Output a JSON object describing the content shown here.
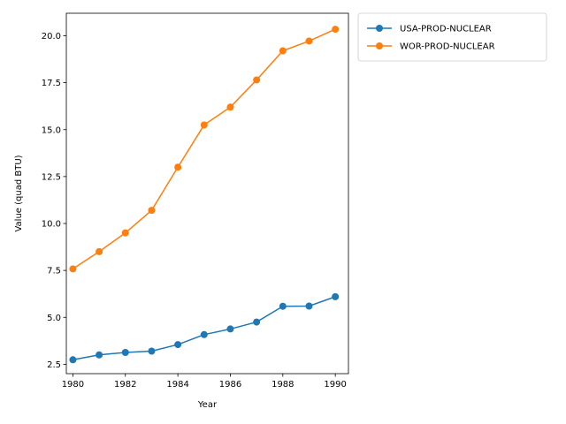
{
  "chart_data": {
    "type": "line",
    "title": "",
    "xlabel": "Year",
    "ylabel": "Value (quad BTU)",
    "x": [
      1980,
      1981,
      1982,
      1983,
      1984,
      1985,
      1986,
      1987,
      1988,
      1989,
      1990
    ],
    "xlim": [
      1979.75,
      1990.5
    ],
    "ylim": [
      2.0,
      21.2
    ],
    "x_ticks": [
      1980,
      1982,
      1984,
      1986,
      1988,
      1990
    ],
    "y_ticks": [
      2.5,
      5.0,
      7.5,
      10.0,
      12.5,
      15.0,
      17.5,
      20.0
    ],
    "grid": false,
    "legend_placement": "outside-top-right",
    "series": [
      {
        "name": "USA-PROD-NUCLEAR",
        "color": "#1f77b4",
        "marker": "circle",
        "values": [
          2.74,
          3.0,
          3.13,
          3.2,
          3.55,
          4.08,
          4.38,
          4.75,
          5.59,
          5.6,
          6.1
        ]
      },
      {
        "name": "WOR-PROD-NUCLEAR",
        "color": "#ff7f0e",
        "marker": "circle",
        "values": [
          7.58,
          8.5,
          9.5,
          10.7,
          13.0,
          15.25,
          16.2,
          17.65,
          19.2,
          19.72,
          20.35
        ]
      }
    ]
  }
}
